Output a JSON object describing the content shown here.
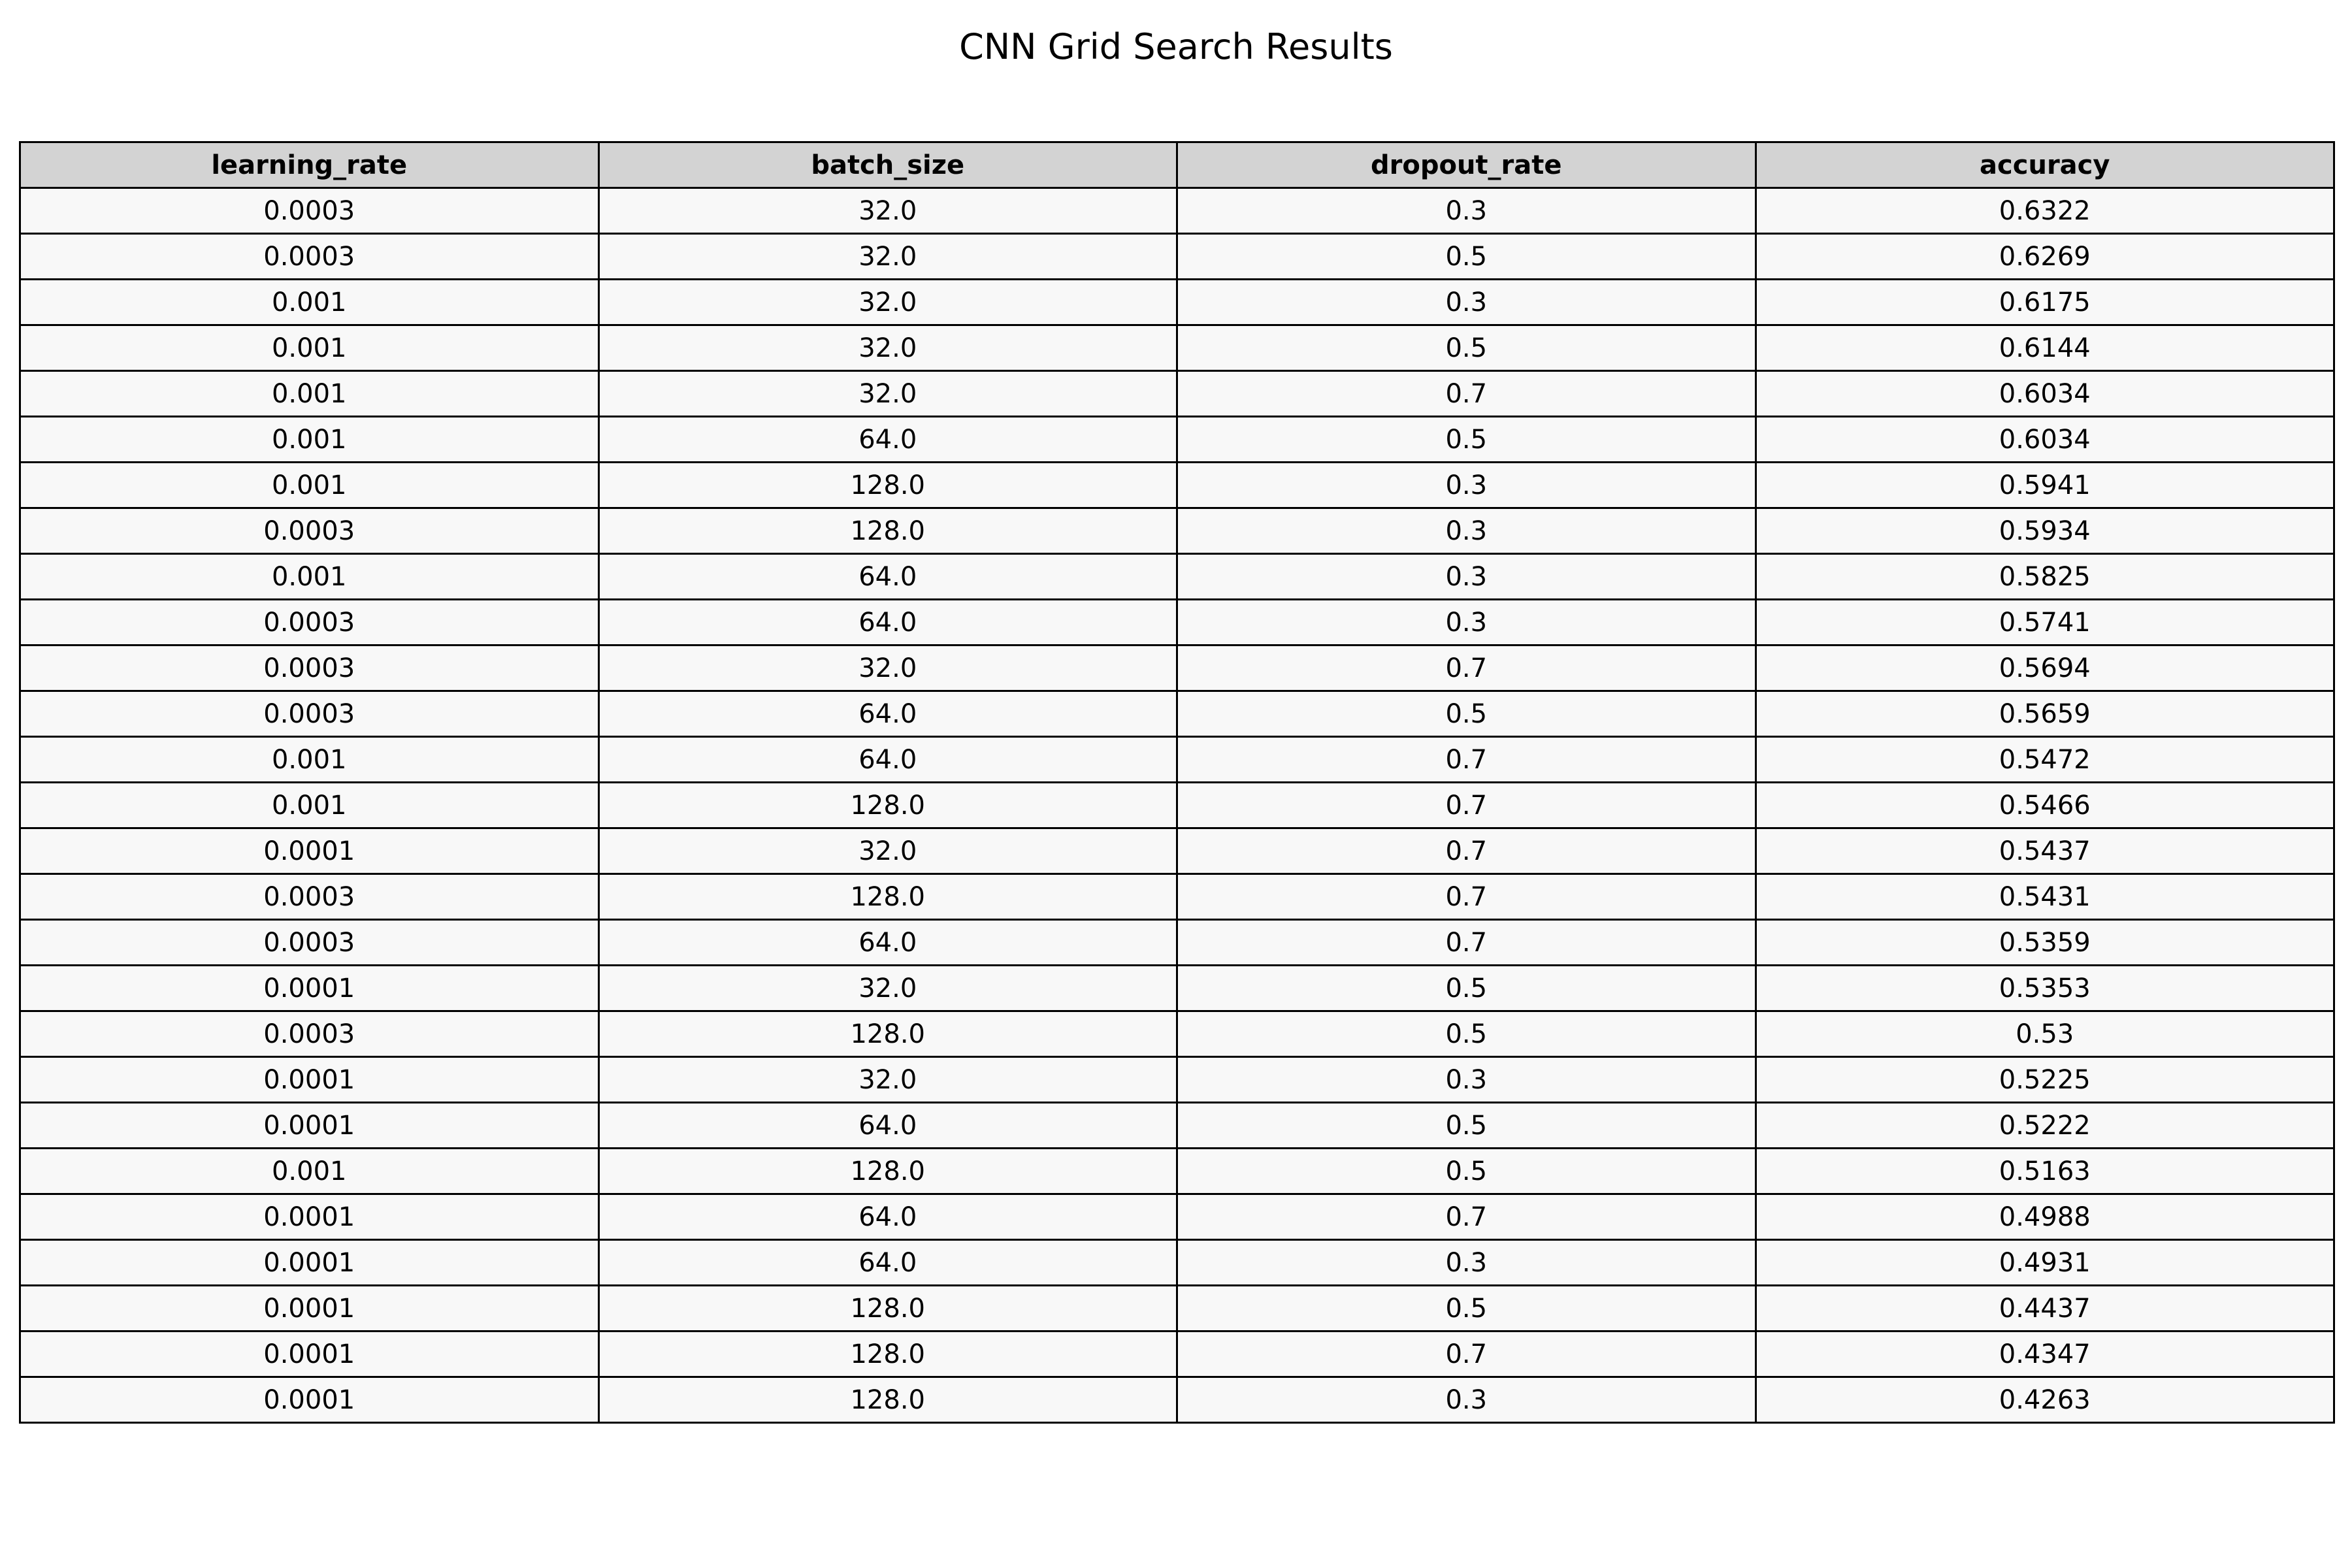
{
  "chart_data": {
    "type": "table",
    "title": "CNN Grid Search Results",
    "columns": [
      "learning_rate",
      "batch_size",
      "dropout_rate",
      "accuracy"
    ],
    "rows": [
      [
        "0.0003",
        "32.0",
        "0.3",
        "0.6322"
      ],
      [
        "0.0003",
        "32.0",
        "0.5",
        "0.6269"
      ],
      [
        "0.001",
        "32.0",
        "0.3",
        "0.6175"
      ],
      [
        "0.001",
        "32.0",
        "0.5",
        "0.6144"
      ],
      [
        "0.001",
        "32.0",
        "0.7",
        "0.6034"
      ],
      [
        "0.001",
        "64.0",
        "0.5",
        "0.6034"
      ],
      [
        "0.001",
        "128.0",
        "0.3",
        "0.5941"
      ],
      [
        "0.0003",
        "128.0",
        "0.3",
        "0.5934"
      ],
      [
        "0.001",
        "64.0",
        "0.3",
        "0.5825"
      ],
      [
        "0.0003",
        "64.0",
        "0.3",
        "0.5741"
      ],
      [
        "0.0003",
        "32.0",
        "0.7",
        "0.5694"
      ],
      [
        "0.0003",
        "64.0",
        "0.5",
        "0.5659"
      ],
      [
        "0.001",
        "64.0",
        "0.7",
        "0.5472"
      ],
      [
        "0.001",
        "128.0",
        "0.7",
        "0.5466"
      ],
      [
        "0.0001",
        "32.0",
        "0.7",
        "0.5437"
      ],
      [
        "0.0003",
        "128.0",
        "0.7",
        "0.5431"
      ],
      [
        "0.0003",
        "64.0",
        "0.7",
        "0.5359"
      ],
      [
        "0.0001",
        "32.0",
        "0.5",
        "0.5353"
      ],
      [
        "0.0003",
        "128.0",
        "0.5",
        "0.53"
      ],
      [
        "0.0001",
        "32.0",
        "0.3",
        "0.5225"
      ],
      [
        "0.0001",
        "64.0",
        "0.5",
        "0.5222"
      ],
      [
        "0.001",
        "128.0",
        "0.5",
        "0.5163"
      ],
      [
        "0.0001",
        "64.0",
        "0.7",
        "0.4988"
      ],
      [
        "0.0001",
        "64.0",
        "0.3",
        "0.4931"
      ],
      [
        "0.0001",
        "128.0",
        "0.5",
        "0.4437"
      ],
      [
        "0.0001",
        "128.0",
        "0.7",
        "0.4347"
      ],
      [
        "0.0001",
        "128.0",
        "0.3",
        "0.4263"
      ]
    ],
    "colors": {
      "header_background": "#d3d3d3",
      "cell_background": "#f8f8f8",
      "border": "#000000"
    }
  }
}
